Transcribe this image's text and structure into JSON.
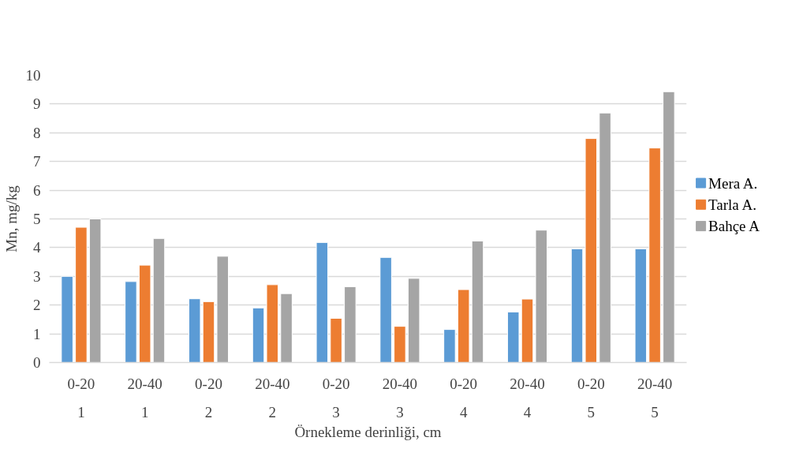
{
  "chart_data": {
    "type": "bar",
    "xlabel": "Örnekleme derinliği, cm",
    "ylabel": "Mn, mg/kg",
    "categories": [
      "0-20\n1",
      "20-40\n1",
      "0-20\n2",
      "20-40\n2",
      "0-20\n3",
      "20-40\n3",
      "0-20\n4",
      "20-40\n4",
      "0-20\n5",
      "20-40\n5"
    ],
    "series": [
      {
        "name": "Mera A.",
        "color": "#5b9bd5",
        "values": [
          3.0,
          2.82,
          2.22,
          1.9,
          4.18,
          3.66,
          1.15,
          1.76,
          3.96,
          3.96
        ]
      },
      {
        "name": "Tarla A.",
        "color": "#ed7d31",
        "values": [
          4.71,
          3.39,
          2.12,
          2.71,
          1.54,
          1.26,
          2.54,
          2.21,
          7.8,
          7.47
        ]
      },
      {
        "name": "Bahçe A",
        "color": "#a5a5a5",
        "values": [
          5.0,
          4.32,
          3.7,
          2.4,
          2.64,
          2.93,
          4.23,
          4.61,
          8.69,
          9.43
        ]
      }
    ],
    "ylim": [
      0,
      10
    ],
    "yticks": [
      0,
      1,
      2,
      3,
      4,
      5,
      6,
      7,
      8,
      9,
      10
    ],
    "grid": "y",
    "legend": "right"
  }
}
